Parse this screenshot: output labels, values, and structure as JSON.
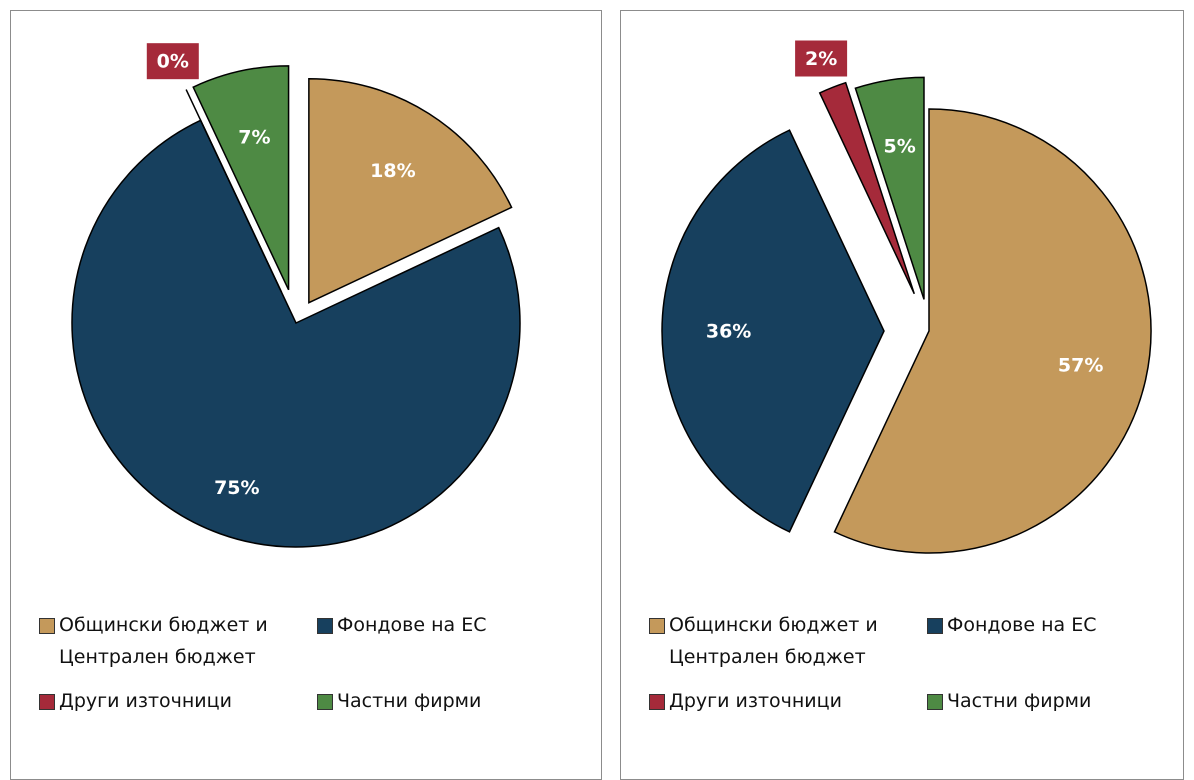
{
  "chart_data": [
    {
      "type": "pie",
      "categories": [
        "Общински бюджет и Централен бюджет",
        "Фондове на ЕС",
        "Други източници",
        "Частни фирми"
      ],
      "values": [
        18,
        75,
        0,
        7
      ],
      "value_labels": [
        "18%",
        "75%",
        "0%",
        "7%"
      ],
      "colors": [
        "#c4995b",
        "#17405e",
        "#a52a3a",
        "#4e8a44"
      ]
    },
    {
      "type": "pie",
      "categories": [
        "Общински бюджет и Централен бюджет",
        "Фондове на ЕС",
        "Други източници",
        "Частни фирми"
      ],
      "values": [
        57,
        36,
        2,
        5
      ],
      "value_labels": [
        "57%",
        "36%",
        "2%",
        "5%"
      ],
      "colors": [
        "#c4995b",
        "#17405e",
        "#a52a3a",
        "#4e8a44"
      ]
    }
  ]
}
